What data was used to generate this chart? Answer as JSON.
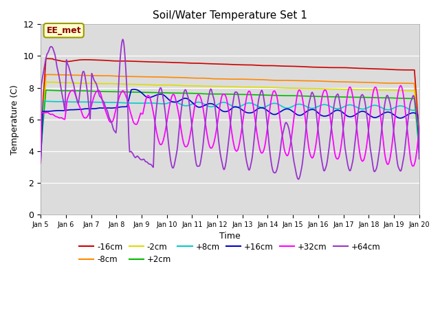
{
  "title": "Soil/Water Temperature Set 1",
  "xlabel": "Time",
  "ylabel": "Temperature (C)",
  "ylim": [
    0,
    12
  ],
  "xlim": [
    0,
    15
  ],
  "x_tick_labels": [
    "Jan 5",
    "Jan 6",
    "Jan 7",
    "Jan 8",
    "Jan 9",
    "Jan 10",
    "Jan 11",
    "Jan 12",
    "Jan 13",
    "Jan 14",
    "Jan 15",
    "Jan 16",
    "Jan 17",
    "Jan 18",
    "Jan 19",
    "Jan 20"
  ],
  "axes_face_color": "#dcdcdc",
  "figure_face_color": "#ffffff",
  "annotation_text": "EE_met",
  "annotation_bg": "#ffffcc",
  "annotation_border": "#999900",
  "series": [
    {
      "label": "-16cm",
      "color": "#cc0000"
    },
    {
      "label": "-8cm",
      "color": "#ff8800"
    },
    {
      "label": "-2cm",
      "color": "#dddd00"
    },
    {
      "label": "+2cm",
      "color": "#00bb00"
    },
    {
      "label": "+8cm",
      "color": "#00cccc"
    },
    {
      "label": "+16cm",
      "color": "#0000cc"
    },
    {
      "label": "+32cm",
      "color": "#ff00ff"
    },
    {
      "label": "+64cm",
      "color": "#9933cc"
    }
  ],
  "n_points": 720
}
